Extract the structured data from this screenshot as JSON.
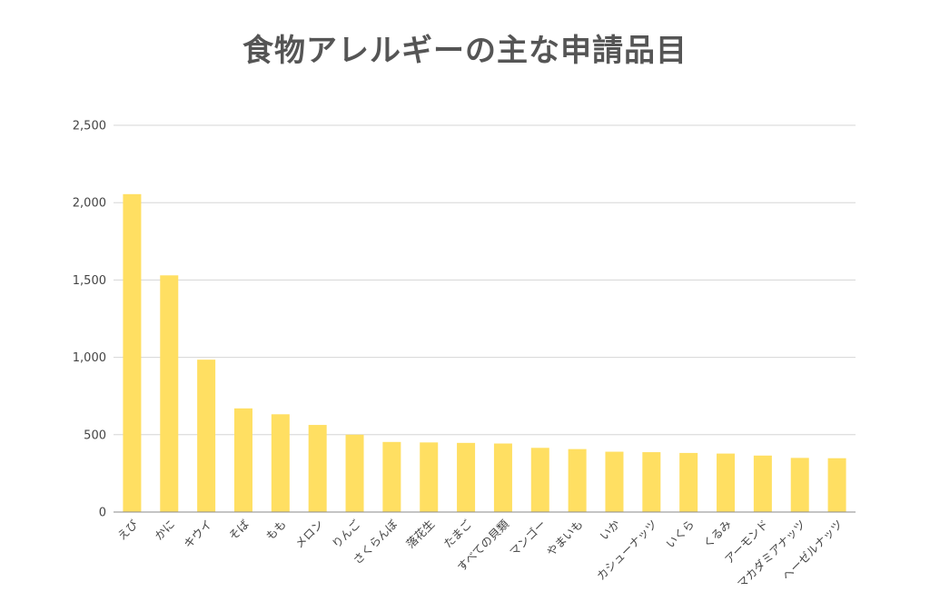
{
  "chart_data": {
    "type": "bar",
    "title": "食物アレルギーの主な申請品目",
    "xlabel": "",
    "ylabel": "",
    "ylim": [
      0,
      2500
    ],
    "yticks": [
      0,
      500,
      1000,
      1500,
      2000,
      2500
    ],
    "ytick_labels": [
      "0",
      "500",
      "1,000",
      "1,500",
      "2,000",
      "2,500"
    ],
    "grid": true,
    "legend": "none",
    "bar_color": "#FFDF62",
    "categories": [
      "えび",
      "かに",
      "キウイ",
      "そば",
      "もも",
      "メロン",
      "りんご",
      "さくらんぼ",
      "落花生",
      "たまご",
      "すべての貝類",
      "マンゴー",
      "やまいも",
      "いか",
      "カシューナッツ",
      "いくら",
      "くるみ",
      "アーモンド",
      "マカダミアナッツ",
      "ヘーゼルナッツ"
    ],
    "values": [
      2055,
      1530,
      985,
      670,
      632,
      563,
      500,
      453,
      450,
      447,
      443,
      415,
      407,
      390,
      387,
      382,
      378,
      365,
      350,
      348
    ]
  }
}
